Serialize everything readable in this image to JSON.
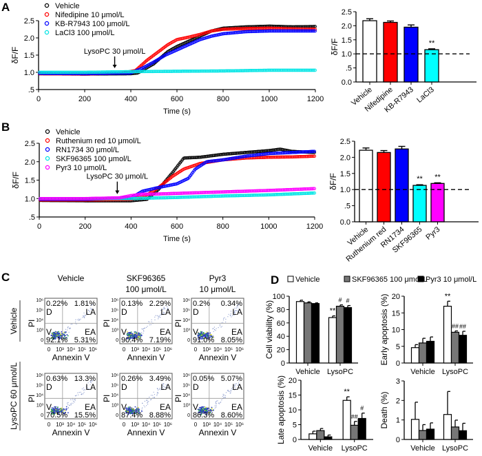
{
  "figure": {
    "panel_labels": [
      "A",
      "B",
      "C",
      "D"
    ]
  },
  "chart_data": [
    {
      "id": "A-trace",
      "panel": "A",
      "type": "line",
      "xlabel": "Time (s)",
      "ylabel": "δF/F",
      "xlim": [
        0,
        1200
      ],
      "ylim": [
        0.5,
        2.5
      ],
      "xticks": [
        0,
        200,
        400,
        600,
        800,
        1000,
        1200
      ],
      "yticks": [
        0.5,
        1.0,
        1.5,
        2.0,
        2.5
      ],
      "ytick_labels": [
        ".5",
        "1.0",
        "1.5",
        "2.0",
        "2.5"
      ],
      "grid": false,
      "legend_position": "top-left",
      "annotation": {
        "text": "LysoPC 30 μmol/L",
        "x": 330,
        "arrow": "down"
      },
      "series": [
        {
          "name": "Vehicle",
          "color": "#000000",
          "x": [
            0,
            200,
            400,
            430,
            500,
            560,
            600,
            650,
            700,
            750,
            800,
            900,
            1000,
            1100,
            1200
          ],
          "y": [
            0.96,
            0.95,
            0.96,
            0.98,
            1.25,
            1.6,
            1.75,
            1.9,
            2.05,
            2.2,
            2.28,
            2.32,
            2.34,
            2.32,
            2.33
          ]
        },
        {
          "name": "Nifedipine 10 μmol/L",
          "color": "#ff0000",
          "x": [
            0,
            200,
            360,
            420,
            470,
            520,
            560,
            600,
            650,
            700,
            750,
            800,
            900,
            1000,
            1100,
            1200
          ],
          "y": [
            0.96,
            0.95,
            0.98,
            1.05,
            1.35,
            1.6,
            1.8,
            1.95,
            2.02,
            2.1,
            2.2,
            2.25,
            2.27,
            2.28,
            2.26,
            2.25
          ]
        },
        {
          "name": "KB-R7943 100 μmol/L",
          "color": "#0000ff",
          "x": [
            0,
            200,
            400,
            450,
            500,
            550,
            600,
            650,
            700,
            750,
            800,
            900,
            1000,
            1100,
            1200
          ],
          "y": [
            0.97,
            0.96,
            0.98,
            1.12,
            1.3,
            1.5,
            1.65,
            1.8,
            1.95,
            2.05,
            2.12,
            2.18,
            2.2,
            2.2,
            2.2
          ]
        },
        {
          "name": "LaCl3 100 μmol/L",
          "color": "#00e5e5",
          "x": [
            0,
            200,
            400,
            600,
            800,
            1000,
            1200
          ],
          "y": [
            1.0,
            1.0,
            1.02,
            1.03,
            1.04,
            1.06,
            1.06
          ]
        }
      ]
    },
    {
      "id": "A-bar",
      "panel": "A",
      "type": "bar",
      "ylabel": "δF/F",
      "ylim": [
        0,
        2.5
      ],
      "yticks": [
        0,
        0.5,
        1.0,
        1.5,
        2.0,
        2.5
      ],
      "ytick_labels": [
        "0.0",
        ".5",
        "1.0",
        "1.5",
        "2.0",
        "2.5"
      ],
      "reference_line": 1.0,
      "categories": [
        "Vehicle",
        "Nifedipine",
        "KB-R7943",
        "LaCl3"
      ],
      "values": [
        2.18,
        2.12,
        1.95,
        1.15
      ],
      "errors": [
        0.07,
        0.05,
        0.08,
        0.03
      ],
      "colors": [
        "#ffffff",
        "#ff0000",
        "#0000ff",
        "#00ffff"
      ],
      "annotations": [
        "",
        "",
        "",
        "**"
      ]
    },
    {
      "id": "B-trace",
      "panel": "B",
      "type": "line",
      "xlabel": "Time (s)",
      "ylabel": "δF/F",
      "xlim": [
        0,
        1200
      ],
      "ylim": [
        0.5,
        2.5
      ],
      "xticks": [
        0,
        200,
        400,
        600,
        800,
        1000,
        1200
      ],
      "yticks": [
        0.5,
        1.0,
        1.5,
        2.0,
        2.5
      ],
      "ytick_labels": [
        ".5",
        "1.0",
        "1.5",
        "2.0",
        "2.5"
      ],
      "grid": false,
      "legend_position": "top-left",
      "annotation": {
        "text": "LysoPC 30 μmol/L",
        "x": 340,
        "arrow": "down"
      },
      "series": [
        {
          "name": "Vehicle",
          "color": "#000000",
          "x": [
            0,
            200,
            400,
            470,
            520,
            580,
            630,
            700,
            800,
            900,
            1000,
            1050,
            1100,
            1200
          ],
          "y": [
            0.95,
            0.94,
            0.94,
            0.98,
            1.25,
            1.7,
            2.1,
            2.12,
            2.2,
            2.25,
            2.3,
            2.34,
            2.28,
            2.25
          ]
        },
        {
          "name": "Ruthenium red 10 μmol/L",
          "color": "#ff0000",
          "x": [
            0,
            200,
            400,
            470,
            520,
            580,
            630,
            700,
            800,
            900,
            1000,
            1100,
            1200
          ],
          "y": [
            0.96,
            0.96,
            0.98,
            1.1,
            1.3,
            1.6,
            1.8,
            1.95,
            2.05,
            2.1,
            2.12,
            2.13,
            2.15
          ]
        },
        {
          "name": "RN1734 30 μmol/L",
          "color": "#0000ff",
          "x": [
            0,
            200,
            400,
            450,
            520,
            600,
            650,
            680,
            730,
            800,
            900,
            1000,
            1100,
            1200
          ],
          "y": [
            0.98,
            0.98,
            1.02,
            1.2,
            1.3,
            1.4,
            1.55,
            1.8,
            2.0,
            2.05,
            2.15,
            2.22,
            2.25,
            2.28
          ]
        },
        {
          "name": "SKF96365 100 μmol/L",
          "color": "#00e5e5",
          "x": [
            0,
            200,
            400,
            600,
            800,
            1000,
            1200
          ],
          "y": [
            1.0,
            1.0,
            1.0,
            1.03,
            1.07,
            1.1,
            1.15
          ]
        },
        {
          "name": "Pyr3 10 μmol/L",
          "color": "#ff00ff",
          "x": [
            0,
            200,
            350,
            400,
            450,
            500,
            600,
            800,
            1000,
            1200
          ],
          "y": [
            1.0,
            1.0,
            1.02,
            1.08,
            1.12,
            1.12,
            1.14,
            1.18,
            1.22,
            1.27
          ]
        }
      ]
    },
    {
      "id": "B-bar",
      "panel": "B",
      "type": "bar",
      "ylabel": "δF/F",
      "ylim": [
        0,
        2.5
      ],
      "yticks": [
        0,
        0.5,
        1.0,
        1.5,
        2.0,
        2.5
      ],
      "ytick_labels": [
        "0.0",
        ".5",
        "1.0",
        "1.5",
        "2.0",
        "2.5"
      ],
      "reference_line": 1.0,
      "categories": [
        "Vehicle",
        "Ruthenium red",
        "RN1734",
        "SKF96365",
        "Pyr3"
      ],
      "values": [
        2.22,
        2.15,
        2.26,
        1.13,
        1.19
      ],
      "errors": [
        0.07,
        0.06,
        0.08,
        0.02,
        0.02
      ],
      "colors": [
        "#ffffff",
        "#ff0000",
        "#0000ff",
        "#00ffff",
        "#ff00ff"
      ],
      "annotations": [
        "",
        "",
        "",
        "**",
        "**"
      ]
    },
    {
      "id": "D-viability",
      "panel": "D",
      "type": "bar",
      "ylabel": "Cell viability (%)",
      "ylim": [
        0,
        100
      ],
      "yticks": [
        0,
        20,
        40,
        60,
        80,
        100
      ],
      "categories": [
        "Vehicle",
        "LysoPC"
      ],
      "series": [
        {
          "name": "Vehicle",
          "values": [
            92,
            68
          ],
          "errors": [
            2,
            2.5
          ],
          "annotations": [
            "",
            "**"
          ]
        },
        {
          "name": "SKF96365 100 μmol/L",
          "values": [
            90,
            85
          ],
          "errors": [
            1.5,
            2
          ],
          "annotations": [
            "",
            "#"
          ]
        },
        {
          "name": "Pyr3 10 μmol/L",
          "values": [
            89,
            83
          ],
          "errors": [
            1,
            3
          ],
          "annotations": [
            "",
            "#"
          ]
        }
      ]
    },
    {
      "id": "D-early",
      "panel": "D",
      "type": "bar",
      "ylabel": "Early apoptosis (%)",
      "ylim": [
        0,
        20
      ],
      "yticks": [
        0,
        5,
        10,
        15,
        20
      ],
      "categories": [
        "Vehicle",
        "LysoPC"
      ],
      "series": [
        {
          "name": "Vehicle",
          "values": [
            4.6,
            17.0
          ],
          "errors": [
            0.9,
            1.5
          ],
          "annotations": [
            "",
            "**"
          ]
        },
        {
          "name": "SKF96365 100 μmol/L",
          "values": [
            6.0,
            9.2
          ],
          "errors": [
            1.4,
            0.4
          ],
          "annotations": [
            "",
            "##"
          ]
        },
        {
          "name": "Pyr3 10 μmol/L",
          "values": [
            6.5,
            8.3
          ],
          "errors": [
            1.3,
            1.2
          ],
          "annotations": [
            "",
            "##"
          ]
        }
      ]
    },
    {
      "id": "D-late",
      "panel": "D",
      "type": "bar",
      "ylabel": "Late apoptosis (%)",
      "ylim": [
        0,
        20
      ],
      "yticks": [
        0,
        5,
        10,
        15,
        20
      ],
      "categories": [
        "Vehicle",
        "LysoPC"
      ],
      "series": [
        {
          "name": "Vehicle",
          "values": [
            1.9,
            13.2
          ],
          "errors": [
            0.9,
            1.2
          ],
          "annotations": [
            "",
            "**"
          ]
        },
        {
          "name": "SKF96365 100 μmol/L",
          "values": [
            3.0,
            4.8
          ],
          "errors": [
            0.7,
            1.3
          ],
          "annotations": [
            "",
            "##"
          ]
        },
        {
          "name": "Pyr3 10 μmol/L",
          "values": [
            0.9,
            7.1
          ],
          "errors": [
            0.6,
            1.8
          ],
          "annotations": [
            "",
            "#"
          ]
        }
      ]
    },
    {
      "id": "D-death",
      "panel": "D",
      "type": "bar",
      "ylabel": "Death (%)",
      "ylim": [
        0,
        3
      ],
      "yticks": [
        0,
        1,
        2,
        3
      ],
      "categories": [
        "Vehicle",
        "LysoPC"
      ],
      "series": [
        {
          "name": "Vehicle",
          "values": [
            1.03,
            1.28
          ],
          "errors": [
            0.88,
            1.18
          ],
          "annotations": [
            "",
            ""
          ]
        },
        {
          "name": "SKF96365 100 μmol/L",
          "values": [
            0.46,
            0.64
          ],
          "errors": [
            0.3,
            0.35
          ],
          "annotations": [
            "",
            ""
          ]
        },
        {
          "name": "Pyr3 10 μmol/L",
          "values": [
            0.53,
            0.45
          ],
          "errors": [
            0.32,
            0.38
          ],
          "annotations": [
            "",
            ""
          ]
        }
      ]
    }
  ],
  "panel_d_legend": [
    {
      "name": "Vehicle",
      "color": "#ffffff"
    },
    {
      "name": "SKF96365 100 μmol/L",
      "color": "#777777"
    },
    {
      "name": "Pyr3 10 μmol/L",
      "color": "#000000"
    }
  ],
  "flow": {
    "columns": [
      {
        "title_lines": [
          "Vehicle",
          ""
        ]
      },
      {
        "title_lines": [
          "SKF96365",
          "100 μmol/L"
        ]
      },
      {
        "title_lines": [
          "Pyr3",
          "10 μmol/L"
        ]
      }
    ],
    "rows": [
      {
        "label": "Vehicle"
      },
      {
        "label": "LysoPC 60 μmol/L"
      }
    ],
    "xlabel": "Annexin V",
    "ylabel": "PI",
    "axis_ticks": [
      "0",
      "10³",
      "10⁴",
      "10⁵",
      "10⁶"
    ],
    "quadrant_labels": {
      "tl": "D",
      "tr": "LA",
      "bl": "V",
      "br": "EA"
    },
    "plots": [
      [
        {
          "D": "0.22%",
          "LA": "1.81%",
          "V": "92.1%",
          "EA": "5.31%"
        },
        {
          "D": "0.13%",
          "LA": "2.29%",
          "V": "90.4%",
          "EA": "7.19%"
        },
        {
          "D": "0.2%",
          "LA": "0.34%",
          "V": "91.0%",
          "EA": "8.05%"
        }
      ],
      [
        {
          "D": "0.63%",
          "LA": "13.3%",
          "V": "70.5%",
          "EA": "15.5%"
        },
        {
          "D": "0.26%",
          "LA": "3.49%",
          "V": "87.4%",
          "EA": "8.88%"
        },
        {
          "D": "0.05%",
          "LA": "5.07%",
          "V": "86.3%",
          "EA": "8.60%"
        }
      ]
    ]
  }
}
